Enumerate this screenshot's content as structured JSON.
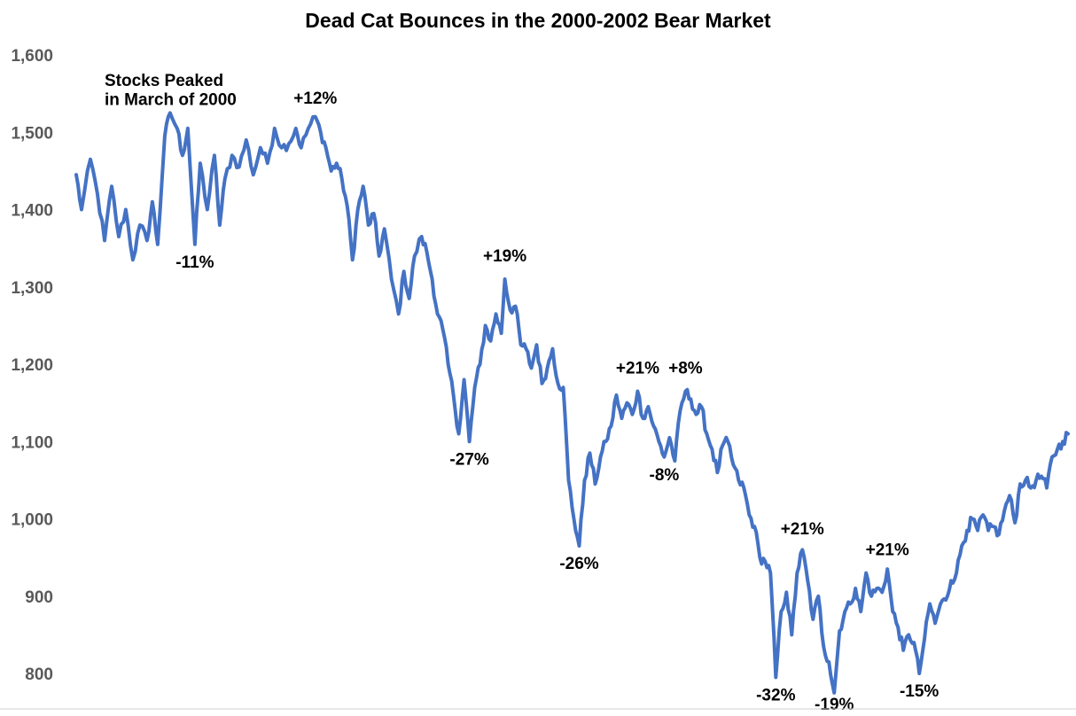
{
  "chart_data": {
    "type": "line",
    "title": "Dead Cat Bounces in the 2000-2002 Bear Market",
    "xlabel": "",
    "ylabel": "",
    "ylim": [
      775,
      1600
    ],
    "yticks": [
      800,
      900,
      1000,
      1100,
      1200,
      1300,
      1400,
      1500,
      1600
    ],
    "ytick_labels": [
      "800",
      "900",
      "1,000",
      "1,100",
      "1,200",
      "1,300",
      "1,400",
      "1,500",
      "1,600"
    ],
    "grid": false,
    "line_color": "#4472C4",
    "x_units": "trading-day index (unlabeled axis)",
    "xlim": [
      0,
      560
    ],
    "anchors": [
      [
        0,
        1445
      ],
      [
        3,
        1400
      ],
      [
        8,
        1465
      ],
      [
        12,
        1420
      ],
      [
        16,
        1360
      ],
      [
        20,
        1430
      ],
      [
        24,
        1365
      ],
      [
        28,
        1400
      ],
      [
        32,
        1335
      ],
      [
        36,
        1380
      ],
      [
        40,
        1360
      ],
      [
        43,
        1410
      ],
      [
        46,
        1355
      ],
      [
        50,
        1495
      ],
      [
        53,
        1525
      ],
      [
        57,
        1505
      ],
      [
        60,
        1470
      ],
      [
        63,
        1505
      ],
      [
        67,
        1355
      ],
      [
        70,
        1460
      ],
      [
        74,
        1400
      ],
      [
        78,
        1470
      ],
      [
        81,
        1380
      ],
      [
        84,
        1440
      ],
      [
        88,
        1470
      ],
      [
        92,
        1455
      ],
      [
        96,
        1490
      ],
      [
        100,
        1445
      ],
      [
        104,
        1480
      ],
      [
        108,
        1460
      ],
      [
        112,
        1505
      ],
      [
        116,
        1480
      ],
      [
        120,
        1485
      ],
      [
        124,
        1505
      ],
      [
        127,
        1480
      ],
      [
        131,
        1505
      ],
      [
        135,
        1520
      ],
      [
        138,
        1500
      ],
      [
        141,
        1480
      ],
      [
        144,
        1450
      ],
      [
        147,
        1460
      ],
      [
        150,
        1440
      ],
      [
        153,
        1405
      ],
      [
        156,
        1335
      ],
      [
        159,
        1400
      ],
      [
        162,
        1430
      ],
      [
        165,
        1380
      ],
      [
        168,
        1395
      ],
      [
        171,
        1340
      ],
      [
        174,
        1375
      ],
      [
        178,
        1310
      ],
      [
        182,
        1265
      ],
      [
        185,
        1320
      ],
      [
        188,
        1285
      ],
      [
        191,
        1340
      ],
      [
        195,
        1365
      ],
      [
        198,
        1345
      ],
      [
        201,
        1310
      ],
      [
        204,
        1265
      ],
      [
        207,
        1245
      ],
      [
        210,
        1200
      ],
      [
        213,
        1160
      ],
      [
        216,
        1110
      ],
      [
        219,
        1180
      ],
      [
        222,
        1100
      ],
      [
        225,
        1170
      ],
      [
        228,
        1200
      ],
      [
        231,
        1250
      ],
      [
        234,
        1230
      ],
      [
        237,
        1265
      ],
      [
        240,
        1240
      ],
      [
        242,
        1310
      ],
      [
        245,
        1270
      ],
      [
        248,
        1275
      ],
      [
        251,
        1225
      ],
      [
        254,
        1220
      ],
      [
        257,
        1195
      ],
      [
        260,
        1225
      ],
      [
        263,
        1175
      ],
      [
        266,
        1195
      ],
      [
        269,
        1220
      ],
      [
        272,
        1175
      ],
      [
        275,
        1170
      ],
      [
        278,
        1050
      ],
      [
        281,
        1000
      ],
      [
        284,
        965
      ],
      [
        287,
        1050
      ],
      [
        290,
        1085
      ],
      [
        293,
        1045
      ],
      [
        296,
        1080
      ],
      [
        299,
        1100
      ],
      [
        302,
        1120
      ],
      [
        305,
        1160
      ],
      [
        308,
        1130
      ],
      [
        311,
        1150
      ],
      [
        314,
        1135
      ],
      [
        317,
        1165
      ],
      [
        320,
        1130
      ],
      [
        323,
        1145
      ],
      [
        326,
        1120
      ],
      [
        329,
        1100
      ],
      [
        332,
        1080
      ],
      [
        335,
        1105
      ],
      [
        338,
        1075
      ],
      [
        341,
        1140
      ],
      [
        344,
        1165
      ],
      [
        347,
        1155
      ],
      [
        350,
        1135
      ],
      [
        353,
        1145
      ],
      [
        356,
        1110
      ],
      [
        359,
        1090
      ],
      [
        362,
        1060
      ],
      [
        365,
        1095
      ],
      [
        368,
        1100
      ],
      [
        371,
        1070
      ],
      [
        374,
        1050
      ],
      [
        377,
        1040
      ],
      [
        380,
        1005
      ],
      [
        383,
        990
      ],
      [
        386,
        950
      ],
      [
        389,
        945
      ],
      [
        392,
        930
      ],
      [
        395,
        795
      ],
      [
        398,
        880
      ],
      [
        401,
        905
      ],
      [
        404,
        850
      ],
      [
        407,
        930
      ],
      [
        410,
        960
      ],
      [
        413,
        920
      ],
      [
        416,
        870
      ],
      [
        419,
        900
      ],
      [
        422,
        835
      ],
      [
        425,
        815
      ],
      [
        428,
        775
      ],
      [
        431,
        855
      ],
      [
        434,
        880
      ],
      [
        437,
        890
      ],
      [
        440,
        910
      ],
      [
        443,
        880
      ],
      [
        446,
        930
      ],
      [
        449,
        900
      ],
      [
        452,
        910
      ],
      [
        455,
        905
      ],
      [
        458,
        935
      ],
      [
        461,
        880
      ],
      [
        464,
        860
      ],
      [
        467,
        830
      ],
      [
        470,
        850
      ],
      [
        473,
        840
      ],
      [
        476,
        800
      ],
      [
        479,
        845
      ],
      [
        482,
        890
      ],
      [
        485,
        865
      ],
      [
        488,
        890
      ],
      [
        491,
        895
      ],
      [
        494,
        920
      ],
      [
        497,
        930
      ],
      [
        500,
        965
      ],
      [
        503,
        985
      ],
      [
        506,
        1000
      ],
      [
        509,
        985
      ],
      [
        512,
        1005
      ],
      [
        515,
        985
      ],
      [
        518,
        990
      ],
      [
        521,
        980
      ],
      [
        524,
        1010
      ],
      [
        527,
        1030
      ],
      [
        530,
        995
      ],
      [
        533,
        1045
      ],
      [
        536,
        1050
      ],
      [
        539,
        1040
      ],
      [
        542,
        1050
      ],
      [
        545,
        1055
      ],
      [
        548,
        1040
      ],
      [
        551,
        1080
      ],
      [
        554,
        1090
      ],
      [
        557,
        1100
      ],
      [
        560,
        1110
      ]
    ],
    "annotations": [
      {
        "text": "Stocks Peaked",
        "x": 16,
        "y": 1560,
        "anchor": "start"
      },
      {
        "text": "in March of 2000",
        "x": 16,
        "y": 1535,
        "anchor": "start"
      },
      {
        "text": "+12%",
        "x": 135,
        "y": 1537,
        "anchor": "middle"
      },
      {
        "text": "-11%",
        "x": 67,
        "y": 1325,
        "anchor": "middle"
      },
      {
        "text": "+19%",
        "x": 242,
        "y": 1333,
        "anchor": "middle"
      },
      {
        "text": "-27%",
        "x": 222,
        "y": 1070,
        "anchor": "middle"
      },
      {
        "text": "+21%",
        "x": 317,
        "y": 1188,
        "anchor": "middle"
      },
      {
        "text": "+8%",
        "x": 344,
        "y": 1188,
        "anchor": "middle"
      },
      {
        "text": "-8%",
        "x": 332,
        "y": 1050,
        "anchor": "middle"
      },
      {
        "text": "-26%",
        "x": 284,
        "y": 935,
        "anchor": "middle"
      },
      {
        "text": "+21%",
        "x": 410,
        "y": 980,
        "anchor": "middle"
      },
      {
        "text": "+21%",
        "x": 458,
        "y": 953,
        "anchor": "middle"
      },
      {
        "text": "-32%",
        "x": 395,
        "y": 765,
        "anchor": "middle"
      },
      {
        "text": "-19%",
        "x": 428,
        "y": 753,
        "anchor": "middle"
      },
      {
        "text": "-15%",
        "x": 476,
        "y": 770,
        "anchor": "middle"
      }
    ]
  }
}
